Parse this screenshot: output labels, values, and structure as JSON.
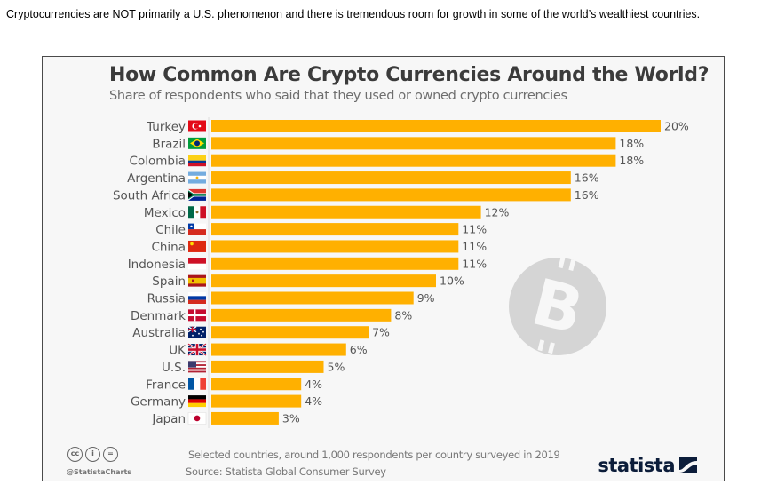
{
  "intro_text": "Cryptocurrencies are NOT primarily a U.S. phenomenon and there is tremendous room for growth in some of the world’s wealthiest countries.",
  "colors": {
    "bar": "#FFB000",
    "frame_border": "#4a4a4a",
    "background": "#f7f7f7",
    "bitcoin_circle": "#d5d5d5",
    "brand": "#0c1d3a"
  },
  "chart_data": {
    "type": "bar",
    "orientation": "horizontal",
    "title": "How Common Are Crypto Currencies Around the World?",
    "subtitle": "Share of respondents who said that they used or owned crypto currencies",
    "xlabel": "",
    "ylabel": "",
    "xlim": [
      0,
      20
    ],
    "unit": "%",
    "grid": false,
    "categories": [
      "Turkey",
      "Brazil",
      "Colombia",
      "Argentina",
      "South Africa",
      "Mexico",
      "Chile",
      "China",
      "Indonesia",
      "Spain",
      "Russia",
      "Denmark",
      "Australia",
      "UK",
      "U.S.",
      "France",
      "Germany",
      "Japan"
    ],
    "values": [
      20,
      18,
      18,
      16,
      16,
      12,
      11,
      11,
      11,
      10,
      9,
      8,
      7,
      6,
      5,
      4,
      4,
      3
    ],
    "value_labels": [
      "20%",
      "18%",
      "18%",
      "16%",
      "16%",
      "12%",
      "11%",
      "11%",
      "11%",
      "10%",
      "9%",
      "8%",
      "7%",
      "6%",
      "5%",
      "4%",
      "4%",
      "3%"
    ],
    "flag_icons": [
      "flag-turkey-icon",
      "flag-brazil-icon",
      "flag-colombia-icon",
      "flag-argentina-icon",
      "flag-south-africa-icon",
      "flag-mexico-icon",
      "flag-chile-icon",
      "flag-china-icon",
      "flag-indonesia-icon",
      "flag-spain-icon",
      "flag-russia-icon",
      "flag-denmark-icon",
      "flag-australia-icon",
      "flag-uk-icon",
      "flag-us-icon",
      "flag-france-icon",
      "flag-germany-icon",
      "flag-japan-icon"
    ],
    "decoration_icon": "bitcoin-icon"
  },
  "footer": {
    "note": "Selected countries, around 1,000 respondents per country surveyed in 2019",
    "source": "Source: Statista Global Consumer Survey",
    "handle": "@StatistaCharts",
    "license_icons": [
      "cc-icon",
      "attribution-icon",
      "no-derivatives-icon"
    ],
    "cc_glyphs": [
      "cc",
      "i",
      "="
    ],
    "brand": "statista"
  }
}
